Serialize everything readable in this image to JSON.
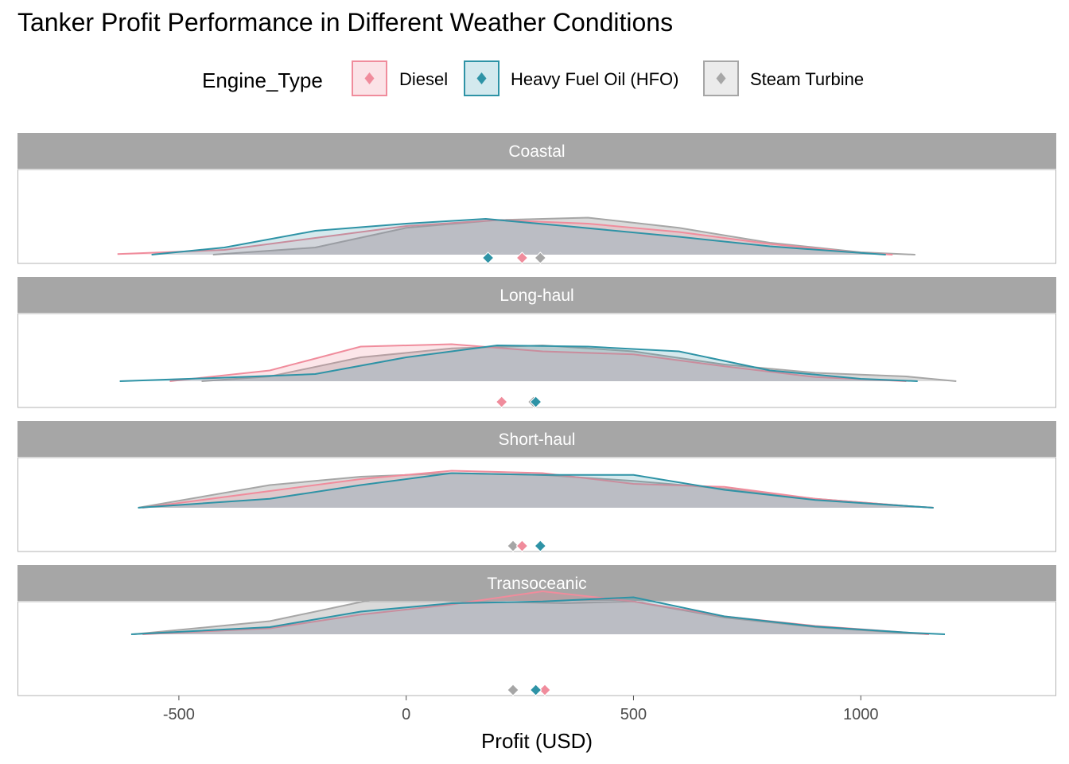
{
  "chart_data": {
    "type": "density",
    "title": "Tanker Profit Performance in Different Weather Conditions",
    "xlabel": "Profit (USD)",
    "ylabel": "",
    "xlim": [
      -855,
      1430
    ],
    "x_ticks": [
      -500,
      0,
      500,
      1000
    ],
    "x_tick_labels": [
      "-500",
      "0",
      "500",
      "1000"
    ],
    "grid": false,
    "legend": {
      "title": "Engine_Type",
      "position": "top",
      "entries": [
        "Diesel",
        "Heavy Fuel Oil (HFO)",
        "Steam Turbine"
      ]
    },
    "colors": {
      "Diesel": "#F08C9C",
      "Heavy Fuel Oil (HFO)": "#2E93A6",
      "Steam Turbine": "#A6A6A6",
      "strip": "#A6A6A6"
    },
    "panels": [
      {
        "label": "Coastal",
        "series": [
          {
            "name": "Diesel",
            "x": [
              -635,
              -400,
              -200,
              0,
              200,
              400,
              600,
              800,
              1000,
              1070
            ],
            "y": [
              0.01,
              0.08,
              0.28,
              0.48,
              0.58,
              0.52,
              0.38,
              0.18,
              0.03,
              0.0
            ],
            "mean": 255
          },
          {
            "name": "Heavy Fuel Oil (HFO)",
            "x": [
              -560,
              -400,
              -200,
              0,
              175,
              350,
              600,
              800,
              1000,
              1055
            ],
            "y": [
              0.0,
              0.12,
              0.4,
              0.52,
              0.6,
              0.48,
              0.3,
              0.14,
              0.03,
              0.0
            ],
            "mean": 180
          },
          {
            "name": "Steam Turbine",
            "x": [
              -425,
              -200,
              0,
              200,
              400,
              600,
              800,
              1000,
              1120
            ],
            "y": [
              0.0,
              0.12,
              0.45,
              0.58,
              0.62,
              0.45,
              0.2,
              0.04,
              0.0
            ],
            "mean": 295
          }
        ]
      },
      {
        "label": "Long-haul",
        "series": [
          {
            "name": "Diesel",
            "x": [
              -520,
              -300,
              -100,
              100,
              300,
              500,
              700,
              900,
              1100
            ],
            "y": [
              0.0,
              0.18,
              0.58,
              0.62,
              0.5,
              0.45,
              0.25,
              0.07,
              0.0
            ],
            "mean": 210
          },
          {
            "name": "Heavy Fuel Oil (HFO)",
            "x": [
              -630,
              -400,
              -200,
              0,
              200,
              400,
              600,
              800,
              1000,
              1125
            ],
            "y": [
              0.0,
              0.06,
              0.12,
              0.4,
              0.6,
              0.58,
              0.5,
              0.18,
              0.04,
              0.0
            ],
            "mean": 285
          },
          {
            "name": "Steam Turbine",
            "x": [
              -450,
              -300,
              -100,
              100,
              300,
              500,
              700,
              900,
              1100,
              1210
            ],
            "y": [
              0.0,
              0.08,
              0.4,
              0.55,
              0.6,
              0.5,
              0.28,
              0.14,
              0.08,
              0.0
            ],
            "mean": 280
          }
        ]
      },
      {
        "label": "Short-haul",
        "series": [
          {
            "name": "Diesel",
            "x": [
              -580,
              -300,
              -100,
              100,
              300,
              500,
              700,
              900,
              1100,
              1160
            ],
            "y": [
              0.0,
              0.28,
              0.48,
              0.62,
              0.58,
              0.4,
              0.35,
              0.15,
              0.03,
              0.0
            ],
            "mean": 255
          },
          {
            "name": "Heavy Fuel Oil (HFO)",
            "x": [
              -590,
              -300,
              -100,
              100,
              300,
              500,
              700,
              900,
              1100,
              1160
            ],
            "y": [
              0.0,
              0.15,
              0.38,
              0.58,
              0.55,
              0.55,
              0.3,
              0.13,
              0.03,
              0.0
            ],
            "mean": 295
          },
          {
            "name": "Steam Turbine",
            "x": [
              -590,
              -300,
              -100,
              100,
              300,
              500,
              700,
              900,
              1100,
              1160
            ],
            "y": [
              0.0,
              0.38,
              0.52,
              0.58,
              0.55,
              0.45,
              0.32,
              0.15,
              0.03,
              0.0
            ],
            "mean": 235
          }
        ]
      },
      {
        "label": "Transoceanic",
        "series": [
          {
            "name": "Diesel",
            "x": [
              -580,
              -300,
              -100,
              100,
              300,
              500,
              700,
              900,
              1100,
              1150
            ],
            "y": [
              0.0,
              0.1,
              0.33,
              0.5,
              0.72,
              0.55,
              0.3,
              0.14,
              0.03,
              0.0
            ],
            "mean": 305
          },
          {
            "name": "Heavy Fuel Oil (HFO)",
            "x": [
              -605,
              -300,
              -100,
              100,
              300,
              500,
              700,
              900,
              1100,
              1185
            ],
            "y": [
              0.0,
              0.12,
              0.38,
              0.52,
              0.55,
              0.62,
              0.3,
              0.13,
              0.03,
              0.0
            ],
            "mean": 285
          },
          {
            "name": "Steam Turbine",
            "x": [
              -600,
              -300,
              -50,
              150,
              350,
              500,
              700,
              900,
              1100,
              1150
            ],
            "y": [
              0.0,
              0.22,
              0.62,
              0.55,
              0.52,
              0.55,
              0.28,
              0.12,
              0.02,
              0.0
            ],
            "mean": 235
          }
        ]
      }
    ]
  }
}
